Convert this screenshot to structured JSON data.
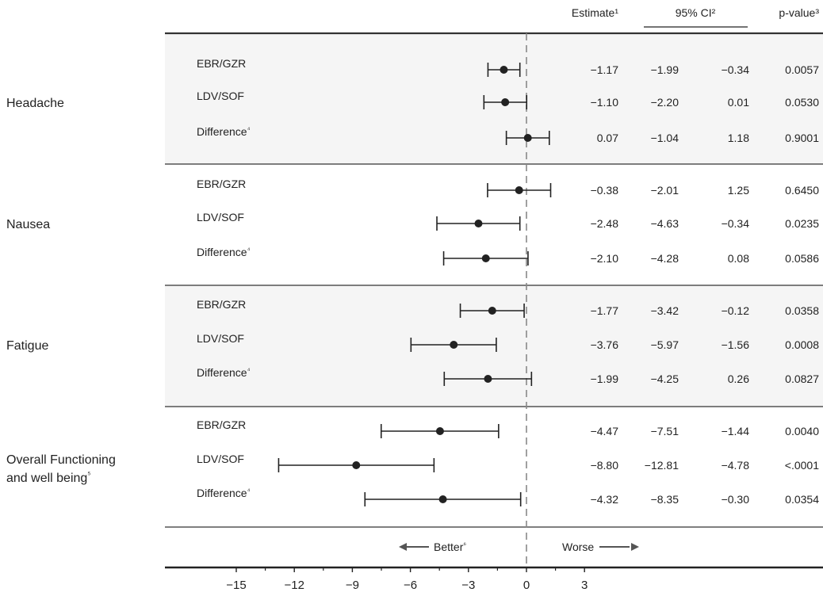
{
  "chart_data": {
    "type": "forest",
    "columns": {
      "estimate": "Estimate¹",
      "ci": "95% CI²",
      "pvalue": "p-value³"
    },
    "groups": [
      {
        "label": "Headache",
        "rows": [
          {
            "label": "EBR/GZR",
            "estimate": -1.17,
            "ci_low": -1.99,
            "ci_high": -0.34,
            "estimate_text": "−1.17",
            "ci_low_text": "−1.99",
            "ci_high_text": "−0.34",
            "p_text": "0.0057"
          },
          {
            "label": "LDV/SOF",
            "estimate": -1.1,
            "ci_low": -2.2,
            "ci_high": 0.01,
            "estimate_text": "−1.10",
            "ci_low_text": "−2.20",
            "ci_high_text": "0.01",
            "p_text": "0.0530"
          },
          {
            "label": "Difference⁴",
            "estimate": 0.07,
            "ci_low": -1.04,
            "ci_high": 1.18,
            "estimate_text": "0.07",
            "ci_low_text": "−1.04",
            "ci_high_text": "1.18",
            "p_text": "0.9001"
          }
        ]
      },
      {
        "label": "Nausea",
        "rows": [
          {
            "label": "EBR/GZR",
            "estimate": -0.38,
            "ci_low": -2.01,
            "ci_high": 1.25,
            "estimate_text": "−0.38",
            "ci_low_text": "−2.01",
            "ci_high_text": "1.25",
            "p_text": "0.6450"
          },
          {
            "label": "LDV/SOF",
            "estimate": -2.48,
            "ci_low": -4.63,
            "ci_high": -0.34,
            "estimate_text": "−2.48",
            "ci_low_text": "−4.63",
            "ci_high_text": "−0.34",
            "p_text": "0.0235"
          },
          {
            "label": "Difference⁴",
            "estimate": -2.1,
            "ci_low": -4.28,
            "ci_high": 0.08,
            "estimate_text": "−2.10",
            "ci_low_text": "−4.28",
            "ci_high_text": "0.08",
            "p_text": "0.0586"
          }
        ]
      },
      {
        "label": "Fatigue",
        "rows": [
          {
            "label": "EBR/GZR",
            "estimate": -1.77,
            "ci_low": -3.42,
            "ci_high": -0.12,
            "estimate_text": "−1.77",
            "ci_low_text": "−3.42",
            "ci_high_text": "−0.12",
            "p_text": "0.0358"
          },
          {
            "label": "LDV/SOF",
            "estimate": -3.76,
            "ci_low": -5.97,
            "ci_high": -1.56,
            "estimate_text": "−3.76",
            "ci_low_text": "−5.97",
            "ci_high_text": "−1.56",
            "p_text": "0.0008"
          },
          {
            "label": "Difference⁴",
            "estimate": -1.99,
            "ci_low": -4.25,
            "ci_high": 0.26,
            "estimate_text": "−1.99",
            "ci_low_text": "−4.25",
            "ci_high_text": "0.26",
            "p_text": "0.0827"
          }
        ]
      },
      {
        "label": "Overall Functioning",
        "label_line2": "and well being⁵",
        "rows": [
          {
            "label": "EBR/GZR",
            "estimate": -4.47,
            "ci_low": -7.51,
            "ci_high": -1.44,
            "estimate_text": "−4.47",
            "ci_low_text": "−7.51",
            "ci_high_text": "−1.44",
            "p_text": "0.0040"
          },
          {
            "label": "LDV/SOF",
            "estimate": -8.8,
            "ci_low": -12.81,
            "ci_high": -4.78,
            "estimate_text": "−8.80",
            "ci_low_text": "−12.81",
            "ci_high_text": "−4.78",
            "p_text": "<.0001"
          },
          {
            "label": "Difference⁴",
            "estimate": -4.32,
            "ci_low": -8.35,
            "ci_high": -0.3,
            "estimate_text": "−4.32",
            "ci_low_text": "−8.35",
            "ci_high_text": "−0.30",
            "p_text": "0.0354"
          }
        ]
      }
    ],
    "x_axis": {
      "min": -15,
      "max": 3,
      "ticks": [
        -15,
        -12,
        -9,
        -6,
        -3,
        0,
        3
      ],
      "tick_labels": [
        "−15",
        "−12",
        "−9",
        "−6",
        "−3",
        "0",
        "3"
      ],
      "reference_line": 0
    },
    "direction_labels": {
      "left": "Better⁶",
      "right": "Worse"
    },
    "colors": {
      "band_shaded": "#f5f5f5",
      "band_plain": "#ffffff",
      "rule": "#333333",
      "ref_line": "#888888",
      "arrow": "#555555"
    }
  }
}
